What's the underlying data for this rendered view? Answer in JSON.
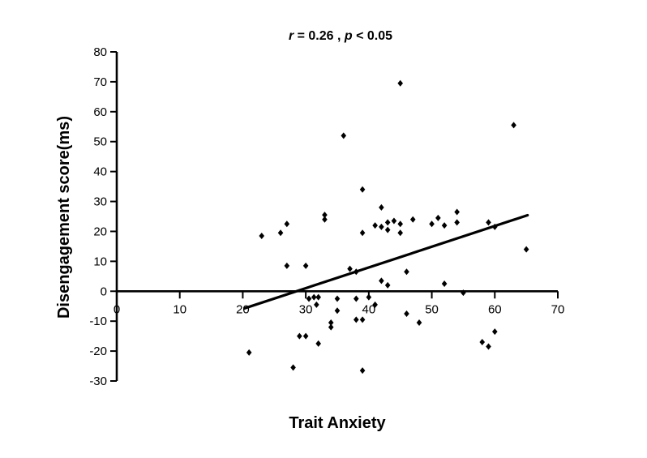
{
  "title": {
    "r_symbol": "r",
    "r_rest": " = 0.26 , ",
    "p_symbol": "p",
    "p_rest": " < 0.05"
  },
  "axes": {
    "x_label": "Trait Anxiety",
    "y_label": "Disengagement score(ms)"
  },
  "colors": {
    "foreground": "#000000",
    "background": "#ffffff"
  },
  "chart_data": {
    "type": "scatter",
    "title": "r = 0.26 , p < 0.05",
    "xlabel": "Trait Anxiety",
    "ylabel": "Disengagement score(ms)",
    "xlim": [
      0,
      70
    ],
    "ylim": [
      -30,
      80
    ],
    "x_ticks": [
      0,
      10,
      20,
      30,
      40,
      50,
      60,
      70
    ],
    "y_ticks": [
      80,
      70,
      60,
      50,
      40,
      30,
      20,
      10,
      0,
      -10,
      -20,
      -30
    ],
    "grid": false,
    "legend": "none",
    "marker": "filled-diamond",
    "marker_color": "#000000",
    "annotation": "r = 0.26 , p < 0.05",
    "points": [
      [
        45,
        69.5
      ],
      [
        36,
        52
      ],
      [
        63,
        55.5
      ],
      [
        23,
        18.5
      ],
      [
        26,
        19.5
      ],
      [
        27,
        22.5
      ],
      [
        33,
        25.5
      ],
      [
        33,
        24
      ],
      [
        39,
        34
      ],
      [
        39,
        19.5
      ],
      [
        41,
        22
      ],
      [
        42,
        28
      ],
      [
        42,
        21.5
      ],
      [
        43,
        23
      ],
      [
        43,
        20.5
      ],
      [
        44,
        23.5
      ],
      [
        45,
        22.5
      ],
      [
        45,
        19.5
      ],
      [
        47,
        24
      ],
      [
        50,
        22.5
      ],
      [
        51,
        24.5
      ],
      [
        52,
        22
      ],
      [
        54,
        26.5
      ],
      [
        54,
        23
      ],
      [
        59,
        23
      ],
      [
        60,
        21.5
      ],
      [
        65,
        14
      ],
      [
        27,
        8.5
      ],
      [
        30,
        8.5
      ],
      [
        37,
        7.5
      ],
      [
        38,
        6.5
      ],
      [
        42,
        3.5
      ],
      [
        43,
        2
      ],
      [
        46,
        6.5
      ],
      [
        52,
        2.5
      ],
      [
        55,
        -0.5
      ],
      [
        30.5,
        -2.5
      ],
      [
        31.3,
        -2
      ],
      [
        32,
        -2
      ],
      [
        31.7,
        -4.5
      ],
      [
        35,
        -2.5
      ],
      [
        35,
        -6.5
      ],
      [
        38,
        -2.5
      ],
      [
        40,
        -2
      ],
      [
        41,
        -4.5
      ],
      [
        38,
        -9.5
      ],
      [
        39,
        -9.5
      ],
      [
        34,
        -10.5
      ],
      [
        34,
        -12
      ],
      [
        29,
        -15
      ],
      [
        30,
        -15
      ],
      [
        32,
        -17.5
      ],
      [
        21,
        -20.5
      ],
      [
        28,
        -25.5
      ],
      [
        39,
        -26.5
      ],
      [
        46,
        -7.5
      ],
      [
        48,
        -10.5
      ],
      [
        60,
        -13.5
      ],
      [
        58,
        -17
      ],
      [
        59,
        -18.5
      ]
    ],
    "regression_line": {
      "x_start": 20.3,
      "y_start": -5.7,
      "x_end": 65.2,
      "y_end": 25.4
    }
  }
}
